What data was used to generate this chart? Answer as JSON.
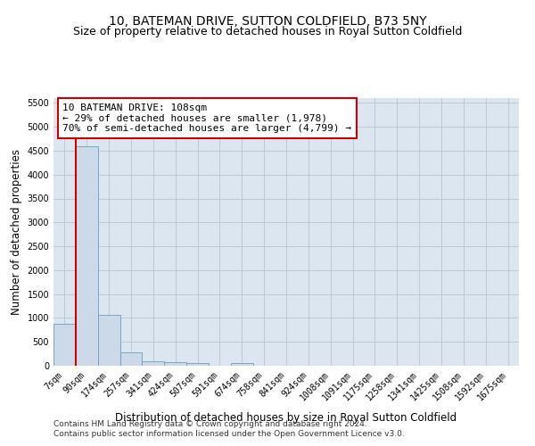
{
  "title": "10, BATEMAN DRIVE, SUTTON COLDFIELD, B73 5NY",
  "subtitle": "Size of property relative to detached houses in Royal Sutton Coldfield",
  "xlabel": "Distribution of detached houses by size in Royal Sutton Coldfield",
  "ylabel": "Number of detached properties",
  "footnote1": "Contains HM Land Registry data © Crown copyright and database right 2024.",
  "footnote2": "Contains public sector information licensed under the Open Government Licence v3.0.",
  "categories": [
    "7sqm",
    "90sqm",
    "174sqm",
    "257sqm",
    "341sqm",
    "424sqm",
    "507sqm",
    "591sqm",
    "674sqm",
    "758sqm",
    "841sqm",
    "924sqm",
    "1008sqm",
    "1091sqm",
    "1175sqm",
    "1258sqm",
    "1341sqm",
    "1425sqm",
    "1508sqm",
    "1592sqm",
    "1675sqm"
  ],
  "values": [
    870,
    4600,
    1070,
    280,
    90,
    75,
    55,
    0,
    55,
    0,
    0,
    0,
    0,
    0,
    0,
    0,
    0,
    0,
    0,
    0,
    0
  ],
  "bar_color": "#ccd9e8",
  "bar_edge_color": "#6b9dc2",
  "highlight_line_color": "#cc0000",
  "annotation_text": "10 BATEMAN DRIVE: 108sqm\n← 29% of detached houses are smaller (1,978)\n70% of semi-detached houses are larger (4,799) →",
  "annotation_box_color": "#ffffff",
  "annotation_box_edgecolor": "#cc0000",
  "ylim": [
    0,
    5600
  ],
  "yticks": [
    0,
    500,
    1000,
    1500,
    2000,
    2500,
    3000,
    3500,
    4000,
    4500,
    5000,
    5500
  ],
  "background_color": "#ffffff",
  "plot_bg_color": "#dce6f0",
  "grid_color": "#b0bec5",
  "title_fontsize": 10,
  "subtitle_fontsize": 9,
  "axis_label_fontsize": 8.5,
  "tick_fontsize": 7,
  "footnote_fontsize": 6.5,
  "annotation_fontsize": 8
}
